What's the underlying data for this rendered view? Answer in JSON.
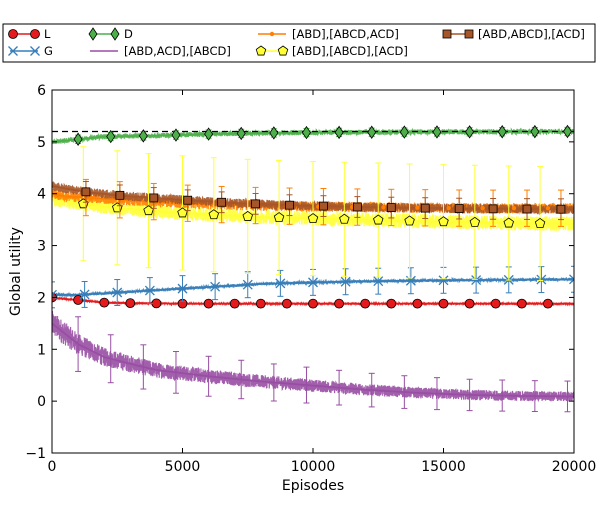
{
  "chart_data": {
    "type": "line",
    "xlabel": "Episodes",
    "ylabel": "Global utility",
    "xlim": [
      0,
      20000
    ],
    "ylim": [
      -1,
      6
    ],
    "xticks": [
      0,
      5000,
      10000,
      15000,
      20000
    ],
    "yticks": [
      -1,
      0,
      1,
      2,
      3,
      4,
      5,
      6
    ],
    "grid": false,
    "legend_position": "top, outside plot",
    "reference_line": {
      "y": 5.2,
      "style": "dashed",
      "color": "#000000"
    },
    "series": [
      {
        "name": "L",
        "color": "#e41a1c",
        "marker": "circle",
        "noise": 0.015,
        "x": [
          0,
          500,
          1000,
          2000,
          3000,
          5000,
          8000,
          12000,
          16000,
          20000
        ],
        "y": [
          2.0,
          1.97,
          1.95,
          1.9,
          1.89,
          1.88,
          1.88,
          1.88,
          1.88,
          1.88
        ],
        "marker_x": [
          0,
          1000,
          2000,
          3000,
          4000,
          5000,
          6000,
          7000,
          8000,
          9000,
          10000,
          11000,
          12000,
          13000,
          14000,
          15000,
          16000,
          17000,
          18000,
          19000
        ],
        "err_x": [],
        "err": 0.03
      },
      {
        "name": "G",
        "color": "#377eb8",
        "marker": "x",
        "noise": 0.03,
        "x": [
          0,
          1000,
          2000,
          4000,
          6000,
          8000,
          10000,
          12000,
          15000,
          18000,
          20000
        ],
        "y": [
          2.05,
          2.05,
          2.08,
          2.14,
          2.2,
          2.26,
          2.29,
          2.31,
          2.33,
          2.34,
          2.35
        ],
        "marker_x": [
          0,
          1250,
          2500,
          3750,
          5000,
          6250,
          7500,
          8750,
          10000,
          11250,
          12500,
          13750,
          15000,
          16250,
          17500,
          18750,
          20000
        ],
        "err_x": [
          0,
          1250,
          2500,
          3750,
          5000,
          6250,
          7500,
          8750,
          10000,
          11250,
          12500,
          13750,
          15000,
          16250,
          17500,
          18750,
          20000
        ],
        "err": 0.25
      },
      {
        "name": "D",
        "color": "#4daf4a",
        "marker": "diamond",
        "noise": 0.05,
        "x": [
          0,
          1000,
          2000,
          4000,
          6000,
          8000,
          10000,
          14000,
          20000
        ],
        "y": [
          5.0,
          5.05,
          5.1,
          5.12,
          5.15,
          5.17,
          5.18,
          5.19,
          5.2
        ],
        "marker_x": [
          1000,
          2250,
          3500,
          4750,
          6000,
          7250,
          8500,
          9750,
          11000,
          12250,
          13500,
          14750,
          16000,
          17250,
          18500,
          19750
        ],
        "err_x": [
          1000,
          2250,
          3500,
          4750,
          6000,
          7250,
          8500,
          9750,
          11000,
          12250,
          13500,
          14750,
          16000,
          17250,
          18500,
          19750
        ],
        "err": 0.08
      },
      {
        "name": "[ABD,ACD],[ABCD]",
        "color": "#984ea3",
        "marker": "none",
        "noise": 0.25,
        "x": [
          0,
          1000,
          2000,
          3000,
          4000,
          6000,
          8000,
          10000,
          12000,
          14000,
          16000,
          18000,
          20000
        ],
        "y": [
          1.5,
          1.1,
          0.85,
          0.72,
          0.6,
          0.48,
          0.38,
          0.3,
          0.22,
          0.16,
          0.12,
          0.1,
          0.09
        ],
        "marker_x": [],
        "err_x": [
          1000,
          2250,
          3500,
          4750,
          6000,
          7250,
          8500,
          9750,
          11000,
          12250,
          13500,
          14750,
          16000,
          17250,
          18500,
          19750
        ],
        "err": 0.55
      },
      {
        "name": "[ABD],[ABCD,ACD]",
        "color": "#ff7f00",
        "marker": "dot",
        "noise": 0.1,
        "x": [
          0,
          500,
          1500,
          3000,
          5000,
          7000,
          9000,
          12000,
          16000,
          20000
        ],
        "y": [
          4.0,
          3.95,
          3.92,
          3.87,
          3.82,
          3.78,
          3.76,
          3.74,
          3.72,
          3.72
        ],
        "marker_x": [
          200,
          1500,
          2700,
          4000,
          5200,
          6500,
          7700,
          9000,
          10200,
          11500,
          12700,
          14000,
          15200,
          16500,
          17700,
          19000
        ],
        "err_x": [
          1300,
          2600,
          3900,
          5200,
          6500,
          7800,
          9100,
          10400,
          11700,
          13000,
          14300,
          15600,
          16900,
          18200,
          19500
        ],
        "err": 0.35
      },
      {
        "name": "[ABD],[ABCD],[ACD]",
        "color": "#ffff33",
        "marker": "pentagon",
        "noise": 0.14,
        "x": [
          0,
          1000,
          2000,
          4000,
          6000,
          8000,
          10000,
          12000,
          14000,
          16000,
          18000,
          20000
        ],
        "y": [
          3.9,
          3.82,
          3.75,
          3.66,
          3.6,
          3.55,
          3.52,
          3.5,
          3.47,
          3.45,
          3.43,
          3.42
        ],
        "marker_x": [
          1200,
          2500,
          3700,
          5000,
          6200,
          7500,
          8700,
          10000,
          11200,
          12500,
          13700,
          15000,
          16200,
          17500,
          18700
        ],
        "err_x": [
          1200,
          2500,
          3700,
          5000,
          6200,
          7500,
          8700,
          10000,
          11200,
          12500,
          13700,
          15000,
          16200,
          17500,
          18700
        ],
        "err": 1.1
      },
      {
        "name": "[ABD,ABCD],[ACD]",
        "color": "#a65628",
        "marker": "square",
        "noise": 0.09,
        "x": [
          0,
          500,
          1500,
          3000,
          5000,
          7000,
          9000,
          12000,
          16000,
          20000
        ],
        "y": [
          4.15,
          4.1,
          4.02,
          3.95,
          3.88,
          3.82,
          3.78,
          3.74,
          3.71,
          3.7
        ],
        "marker_x": [
          1300,
          2600,
          3900,
          5200,
          6500,
          7800,
          9100,
          10400,
          11700,
          13000,
          14300,
          15600,
          16900,
          18200,
          19500
        ],
        "err_x": [
          1300,
          2600,
          3900,
          5200,
          6500,
          7800,
          9100,
          10400,
          11700,
          13000,
          14300,
          15600,
          16900,
          18200,
          19500
        ],
        "err": 0.2
      }
    ]
  }
}
